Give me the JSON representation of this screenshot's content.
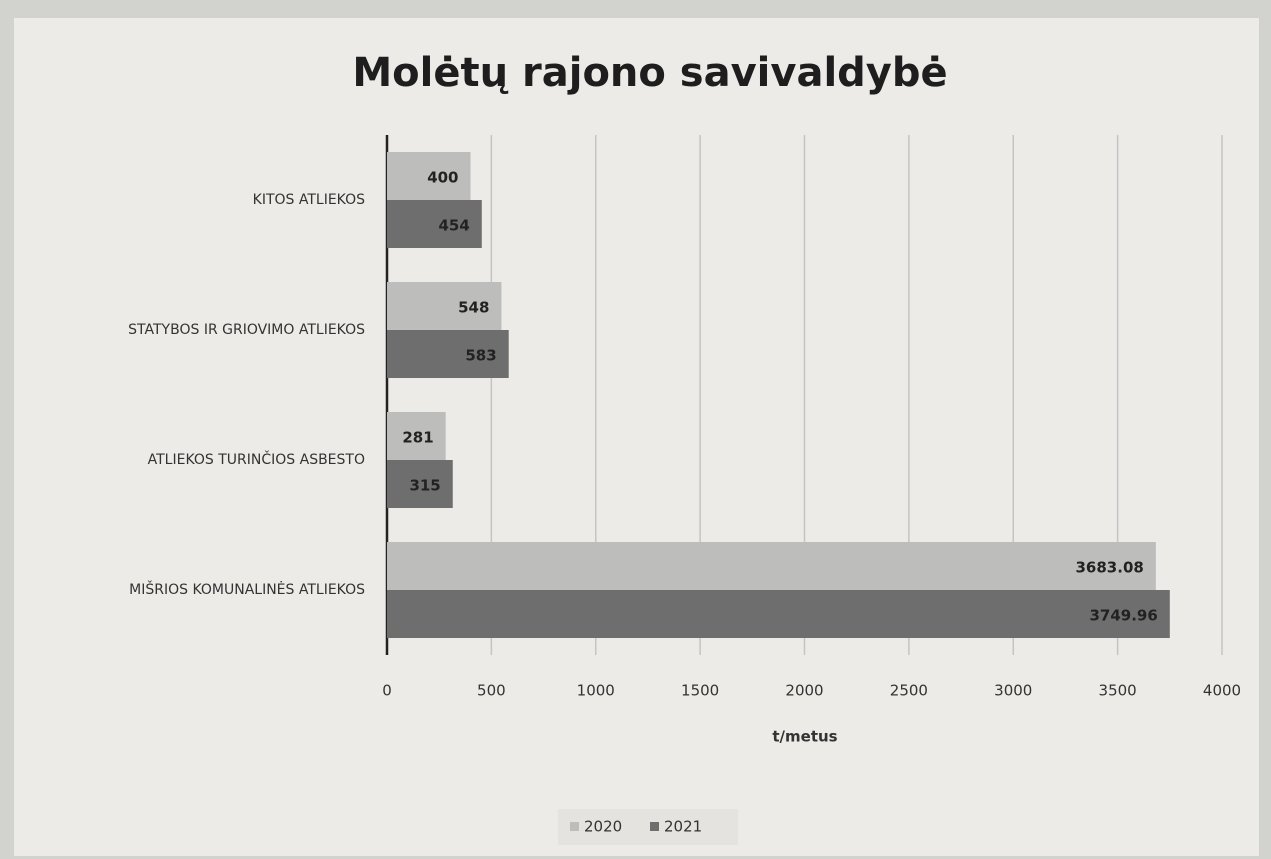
{
  "chart_data": {
    "type": "bar",
    "orientation": "horizontal",
    "title": "Molėtų rajono savivaldybė",
    "x_label": "t/metus",
    "categories": [
      "KITOS ATLIEKOS",
      "STATYBOS IR GRIOVIMO ATLIEKOS",
      "ATLIEKOS TURINČIOS ASBESTO",
      "MIŠRIOS KOMUNALINĖS ATLIEKOS"
    ],
    "series": [
      {
        "name": "2020",
        "color": "#bdbdbb",
        "values": [
          400,
          548,
          281,
          3683.08
        ]
      },
      {
        "name": "2021",
        "color": "#6e6e6e",
        "values": [
          454,
          583,
          315,
          3749.96
        ]
      }
    ],
    "xlim": [
      0,
      4000
    ],
    "xticks": [
      0,
      500,
      1000,
      1500,
      2000,
      2500,
      3000,
      3500,
      4000
    ],
    "grid": true,
    "legend": "bottom"
  }
}
